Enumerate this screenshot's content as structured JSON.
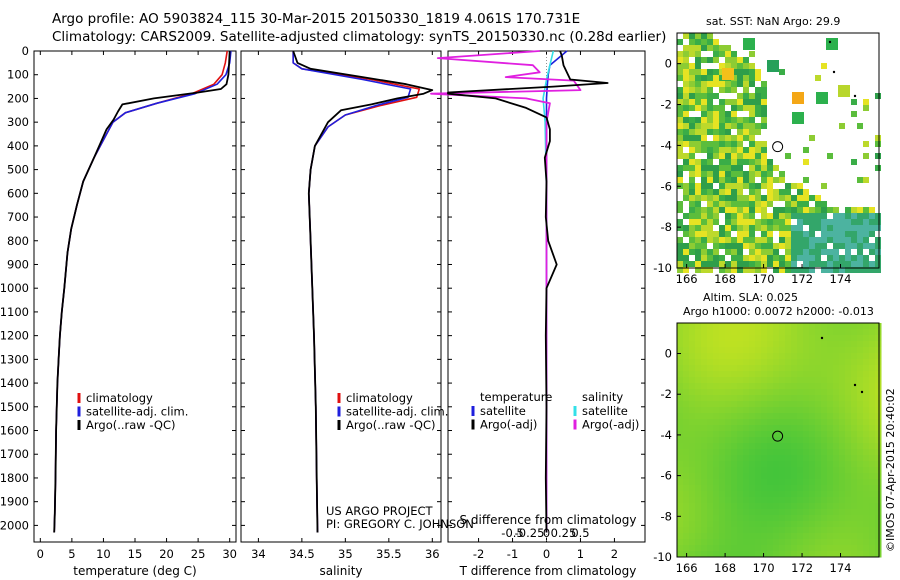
{
  "header": {
    "line1": "Argo profile: AO 5903824_115 30-Mar-2015 20150330_1819 4.061S 170.731E",
    "line2": "Climatology: CARS2009. Satellite-adjusted climatology: synTS_20150330.nc (0.28d earlier)"
  },
  "panel1": {
    "xlabel": "temperature (deg C)",
    "x_ticks": [
      "0",
      "5",
      "10",
      "15",
      "20",
      "25",
      "30"
    ],
    "y_ticks": [
      "0",
      "100",
      "200",
      "300",
      "400",
      "500",
      "600",
      "700",
      "800",
      "900",
      "1000",
      "1100",
      "1200",
      "1300",
      "1400",
      "1500",
      "1600",
      "1700",
      "1800",
      "1900",
      "2000"
    ],
    "legend": [
      "climatology",
      "satellite-adj. clim.",
      "Argo(..raw -QC)"
    ]
  },
  "panel2": {
    "xlabel": "salinity",
    "x_ticks": [
      "34",
      "34.5",
      "35",
      "35.5",
      "36"
    ],
    "legend": [
      "climatology",
      "satellite-adj. clim.",
      "Argo(..raw -QC)"
    ],
    "note1": "US ARGO PROJECT",
    "note2": "PI: GREGORY C. JOHNSON"
  },
  "panel3": {
    "xlabel": "T difference from climatology",
    "top_label": "S difference from climatology",
    "x_ticks": [
      "-2",
      "-1",
      "0",
      "1",
      "2"
    ],
    "s_ticks": [
      "-0.5",
      "-0.25",
      "0",
      "0.25",
      "0.5"
    ],
    "legend_t_title": "temperature",
    "legend_s_title": "salinity",
    "legend_t": [
      "satellite",
      "Argo(-adj)"
    ],
    "legend_s": [
      "satellite",
      "Argo(-adj)"
    ]
  },
  "map1": {
    "title": "sat. SST: NaN Argo: 29.9",
    "x_ticks": [
      "166",
      "168",
      "170",
      "172",
      "174"
    ],
    "y_ticks": [
      "0",
      "-2",
      "-4",
      "-6",
      "-8",
      "-10"
    ]
  },
  "map2": {
    "title1": "Altim. SLA: 0.025",
    "title2": "Argo h1000: 0.0072 h2000: -0.013",
    "x_ticks": [
      "166",
      "168",
      "170",
      "172",
      "174"
    ],
    "y_ticks": [
      "0",
      "-2",
      "-4",
      "-6",
      "-8",
      "-10"
    ]
  },
  "credit": "©IMOS 07-Apr-2015 20:40:02",
  "colors": {
    "climatology": "#e01010",
    "satellite": "#1f1fdd",
    "argo": "#000000",
    "sat_salinity": "#33e0e8",
    "argo_salinity": "#e020e0"
  },
  "chart_data": [
    {
      "type": "line",
      "xlabel": "temperature (deg C)",
      "ylabel": "",
      "xlim": [
        -1,
        31
      ],
      "ylim": [
        2070,
        0
      ],
      "series": [
        {
          "name": "climatology",
          "x": [
            29.6,
            29.3,
            28.8,
            27.5,
            24,
            18.5,
            13.5,
            11.5,
            10.5,
            8.5,
            6.8,
            5.8,
            4.9,
            4.3,
            3.8,
            3.4,
            3.1,
            2.9,
            2.7,
            2.5,
            2.4,
            2.3,
            2.2
          ],
          "y": [
            0,
            50,
            100,
            140,
            180,
            220,
            260,
            300,
            350,
            450,
            550,
            650,
            750,
            850,
            1000,
            1100,
            1200,
            1300,
            1400,
            1600,
            1800,
            1950,
            2030
          ]
        },
        {
          "name": "satellite-adj. clim.",
          "x": [
            30.2,
            30,
            29.4,
            28,
            24.5,
            18.5,
            13.5,
            11.5,
            10.5,
            8.5,
            6.8,
            5.8,
            4.9,
            4.3,
            3.8,
            3.4,
            3.1,
            2.9,
            2.7,
            2.5,
            2.4,
            2.3,
            2.2
          ],
          "y": [
            0,
            50,
            100,
            140,
            180,
            220,
            260,
            300,
            350,
            450,
            550,
            650,
            750,
            850,
            1000,
            1100,
            1200,
            1300,
            1400,
            1600,
            1800,
            1950,
            2030
          ]
        },
        {
          "name": "Argo(..raw -QC)",
          "x": [
            30,
            29.9,
            29.8,
            29.5,
            28.6,
            25,
            18,
            13,
            12.3,
            11.6,
            10.5,
            8.5,
            6.8,
            5.8,
            4.9,
            4.3,
            3.8,
            3.4,
            3.1,
            2.9,
            2.7,
            2.5,
            2.4,
            2.3,
            2.2
          ],
          "y": [
            0,
            50,
            100,
            140,
            160,
            175,
            200,
            225,
            255,
            290,
            330,
            450,
            550,
            650,
            750,
            850,
            1000,
            1100,
            1200,
            1300,
            1400,
            1600,
            1800,
            1950,
            2030
          ]
        }
      ]
    },
    {
      "type": "line",
      "xlabel": "salinity",
      "ylabel": "",
      "xlim": [
        33.8,
        36.1
      ],
      "ylim": [
        2070,
        0
      ],
      "series": [
        {
          "name": "climatology",
          "x": [
            34.4,
            34.4,
            34.5,
            35.3,
            35.85,
            35.82,
            35.4,
            35.0,
            34.8,
            34.65,
            34.6,
            34.58,
            34.6,
            34.62,
            34.64,
            34.66,
            34.67,
            34.68
          ],
          "y": [
            0,
            50,
            75,
            120,
            160,
            195,
            230,
            270,
            320,
            400,
            500,
            600,
            800,
            1000,
            1200,
            1500,
            1800,
            2030
          ]
        },
        {
          "name": "satellite-adj. clim.",
          "x": [
            34.4,
            34.4,
            34.5,
            35.2,
            35.75,
            35.72,
            35.35,
            35.0,
            34.8,
            34.65,
            34.6,
            34.58,
            34.6,
            34.62,
            34.64,
            34.66,
            34.67,
            34.68
          ],
          "y": [
            0,
            50,
            75,
            120,
            160,
            195,
            230,
            270,
            320,
            400,
            500,
            600,
            800,
            1000,
            1200,
            1500,
            1800,
            2030
          ]
        },
        {
          "name": "Argo(..raw -QC)",
          "x": [
            34.4,
            34.45,
            34.6,
            35.2,
            35.7,
            36.0,
            35.9,
            35.6,
            35.3,
            34.95,
            34.8,
            34.65,
            34.6,
            34.58,
            34.6,
            34.62,
            34.64,
            34.66,
            34.67,
            34.68
          ],
          "y": [
            0,
            50,
            75,
            110,
            140,
            165,
            180,
            200,
            225,
            250,
            300,
            400,
            500,
            600,
            800,
            1000,
            1200,
            1500,
            1800,
            2030
          ]
        }
      ]
    },
    {
      "type": "line",
      "xlabel": "T difference from climatology",
      "ylabel": "",
      "xlim": [
        -2.9,
        2.9
      ],
      "ylim": [
        2070,
        0
      ],
      "series": [
        {
          "name": "temperature satellite",
          "x": [
            0.6,
            0.1,
            0.05,
            0.02,
            0,
            0,
            0,
            0,
            0,
            0
          ],
          "y": [
            0,
            60,
            100,
            150,
            200,
            400,
            800,
            1300,
            1600,
            2030
          ]
        },
        {
          "name": "temperature Argo(-adj)",
          "x": [
            0.4,
            0.45,
            0.5,
            0.7,
            1.8,
            0.2,
            -2.9,
            -2.9,
            -1.5,
            -0.6,
            0,
            0.1,
            0.1,
            -0.05,
            0,
            -0.02,
            0.05,
            0.3,
            0,
            -0.02,
            0,
            -0.02,
            0
          ],
          "y": [
            0,
            20,
            60,
            120,
            135,
            150,
            175,
            180,
            200,
            240,
            280,
            330,
            380,
            450,
            550,
            700,
            800,
            900,
            1000,
            1200,
            1500,
            1800,
            2030
          ]
        },
        {
          "name": "salinity satellite",
          "x": [
            0.1,
            0.05,
            0.0,
            -0.05,
            -0.02,
            0,
            0,
            0
          ],
          "y": [
            0,
            60,
            120,
            200,
            300,
            600,
            1200,
            2030
          ]
        },
        {
          "name": "salinity Argo(-adj)",
          "x": [
            -0.1,
            -1.6,
            -0.2,
            -0.1,
            -0.6,
            0.4,
            0.5,
            -1.7,
            -0.3,
            0.05,
            0.0,
            0,
            0
          ],
          "y": [
            0,
            30,
            60,
            90,
            110,
            125,
            165,
            180,
            200,
            220,
            300,
            600,
            2030
          ]
        }
      ]
    },
    {
      "type": "heatmap",
      "title": "sat. SST: NaN Argo: 29.9",
      "xlim": [
        165.5,
        176
      ],
      "ylim": [
        -10,
        1.5
      ],
      "marker": {
        "lon": 170.731,
        "lat": -4.061
      }
    },
    {
      "type": "heatmap",
      "title": "Altim. SLA: 0.025",
      "xlim": [
        165.5,
        176
      ],
      "ylim": [
        -10,
        1.5
      ],
      "marker": {
        "lon": 170.731,
        "lat": -4.061
      }
    }
  ]
}
